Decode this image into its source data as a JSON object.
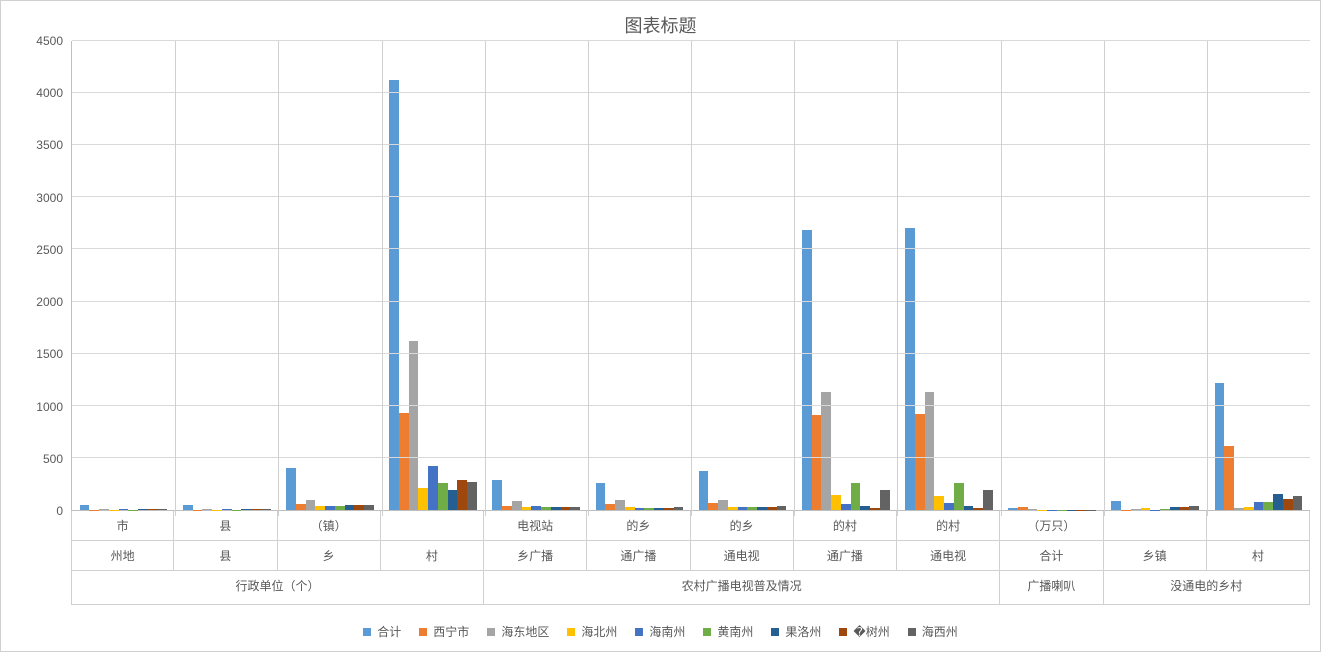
{
  "chart": {
    "title": "图表标题",
    "title_fontsize": 18,
    "background_color": "#ffffff",
    "grid_color": "#d9d9d9",
    "axis_line_color": "#bfbfbf",
    "text_color": "#595959",
    "tick_fontsize": 12,
    "legend_fontsize": 12,
    "type": "bar",
    "ylim": [
      0,
      4500
    ],
    "ytick_step": 500,
    "yticks": [
      0,
      500,
      1000,
      1500,
      2000,
      2500,
      3000,
      3500,
      4000,
      4500
    ],
    "series": [
      {
        "name": "合计",
        "color": "#5b9bd5"
      },
      {
        "name": "西宁市",
        "color": "#ed7d31"
      },
      {
        "name": "海东地区",
        "color": "#a5a5a5"
      },
      {
        "name": "海北州",
        "color": "#ffc000"
      },
      {
        "name": "海南州",
        "color": "#4472c4"
      },
      {
        "name": "黄南州",
        "color": "#70ad47"
      },
      {
        "name": "果洛州",
        "color": "#255e91"
      },
      {
        "name": "�树州",
        "color": "#9e480e"
      },
      {
        "name": "海西州",
        "color": "#636363"
      }
    ],
    "categories": [
      {
        "level1": "市",
        "level2": "州地",
        "level3": "行政单位（个）",
        "values": [
          46,
          4,
          6,
          4,
          5,
          4,
          6,
          6,
          8
        ]
      },
      {
        "level1": "县",
        "level2": "县",
        "level3": "行政单位（个）",
        "values": [
          46,
          4,
          6,
          4,
          5,
          4,
          6,
          6,
          8
        ]
      },
      {
        "level1": "（镇）",
        "level2": "乡",
        "level3": "行政单位（个）",
        "values": [
          400,
          55,
          100,
          35,
          40,
          35,
          45,
          50,
          45
        ]
      },
      {
        "level1": "",
        "level2": "村",
        "level3": "行政单位（个）",
        "values": [
          4130,
          930,
          1620,
          210,
          420,
          260,
          190,
          290,
          270
        ]
      },
      {
        "level1": "电视站",
        "level2": "乡广播",
        "level3": "农村广播电视普及情况",
        "values": [
          290,
          40,
          90,
          25,
          35,
          25,
          30,
          30,
          30
        ]
      },
      {
        "level1": "的乡",
        "level2": "通广播",
        "level3": "农村广播电视普及情况",
        "values": [
          260,
          55,
          95,
          25,
          20,
          18,
          15,
          20,
          25
        ]
      },
      {
        "level1": "的乡",
        "level2": "通电视",
        "level3": "农村广播电视普及情况",
        "values": [
          370,
          65,
          95,
          30,
          30,
          25,
          25,
          30,
          35
        ]
      },
      {
        "level1": "的村",
        "level2": "通广播",
        "level3": "农村广播电视普及情况",
        "values": [
          2690,
          910,
          1130,
          140,
          60,
          260,
          35,
          15,
          195
        ]
      },
      {
        "level1": "的村",
        "level2": "通电视",
        "level3": "农村广播电视普及情况",
        "values": [
          2710,
          920,
          1135,
          135,
          65,
          260,
          35,
          15,
          195
        ]
      },
      {
        "level1": "（万只）",
        "level2": "合计",
        "level3": "广播喇叭",
        "values": [
          15,
          25,
          5,
          2,
          2,
          2,
          2,
          2,
          2
        ]
      },
      {
        "level1": "",
        "level2": "乡镇",
        "level3": "没通电的乡村",
        "values": [
          85,
          3,
          10,
          22,
          3,
          10,
          28,
          25,
          35
        ]
      },
      {
        "level1": "",
        "level2": "村",
        "level3": "没通电的乡村",
        "values": [
          1220,
          610,
          15,
          30,
          75,
          75,
          150,
          105,
          130
        ]
      }
    ],
    "bar_width_ratio": 0.85
  }
}
